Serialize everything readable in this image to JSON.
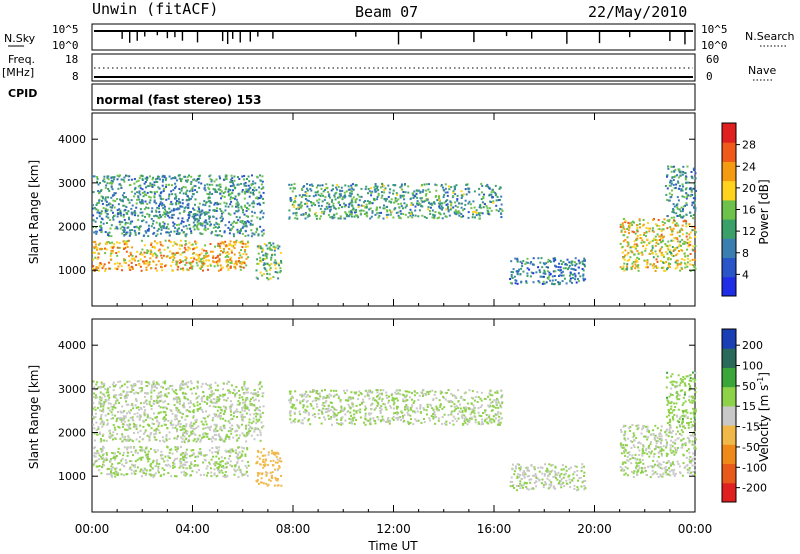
{
  "header": {
    "station": "Unwin (fitACF)",
    "beam": "Beam 07",
    "date": "22/May/2010"
  },
  "strip": {
    "nsky_label": "N.Sky",
    "nsearch_label": "N.Search",
    "nsky_ticks": [
      "10^5",
      "10^0"
    ],
    "nsky_right_ticks": [
      "10^5",
      "10^0"
    ],
    "freq_label": "Freq.",
    "freq_unit": "[MHz]",
    "freq_ticks": [
      "18",
      "8"
    ],
    "nave_label": "Nave",
    "nave_ticks": [
      "60",
      "0"
    ],
    "cpid_label": "CPID",
    "cpid_text": "normal (fast stereo) 153"
  },
  "x_axis": {
    "label": "Time UT",
    "ticks": [
      "00:00",
      "04:00",
      "08:00",
      "12:00",
      "16:00",
      "20:00",
      "00:00"
    ],
    "range_hours": [
      0,
      24
    ]
  },
  "chart_data": [
    {
      "type": "heatmap",
      "quantity": "Power",
      "x": "time_hours",
      "y": "slant_range_km",
      "ylabel": "Slant Range [km]",
      "xlabel": "Time UT",
      "ylim": [
        180,
        4600
      ],
      "yticks": [
        "1000",
        "2000",
        "3000",
        "4000"
      ],
      "colorbar": {
        "label": "Power [dB]",
        "ticks": [
          "4",
          "8",
          "12",
          "16",
          "20",
          "24",
          "28"
        ],
        "range": [
          0,
          32
        ],
        "colors": [
          "#1f2ee6",
          "#2a55c9",
          "#3a7fb0",
          "#3aa06a",
          "#6cc24a",
          "#ffd21e",
          "#f59b12",
          "#ef5a1a",
          "#e02020"
        ]
      },
      "echo_regions": [
        {
          "name": "band-main",
          "t0": 0.0,
          "t1": 6.2,
          "r0": 1000,
          "r1": 1700,
          "level": 22
        },
        {
          "name": "band-upper",
          "t0": 0.0,
          "t1": 6.8,
          "r0": 1800,
          "r1": 3200,
          "level": 10
        },
        {
          "name": "patch-0730",
          "t0": 6.5,
          "t1": 7.5,
          "r0": 800,
          "r1": 1650,
          "level": 14
        },
        {
          "name": "band-mid",
          "t0": 7.8,
          "t1": 16.3,
          "r0": 2200,
          "r1": 3000,
          "level": 12
        },
        {
          "name": "patch-1800",
          "t0": 16.6,
          "t1": 19.6,
          "r0": 700,
          "r1": 1300,
          "level": 8
        },
        {
          "name": "late-band",
          "t0": 21.0,
          "t1": 24.0,
          "r0": 1000,
          "r1": 2200,
          "level": 20
        },
        {
          "name": "late-upper",
          "t0": 22.8,
          "t1": 24.0,
          "r0": 2200,
          "r1": 3400,
          "level": 10
        }
      ]
    },
    {
      "type": "heatmap",
      "quantity": "Velocity",
      "x": "time_hours",
      "y": "slant_range_km",
      "ylabel": "Slant Range [km]",
      "xlabel": "Time UT",
      "ylim": [
        180,
        4600
      ],
      "yticks": [
        "1000",
        "2000",
        "3000",
        "4000"
      ],
      "colorbar": {
        "label": "Velocity [m s",
        "label_sup": "-1",
        "label_end": "]",
        "ticks": [
          "200",
          "100",
          "50",
          "15",
          "-15",
          "-50",
          "-100",
          "-200"
        ],
        "colors": [
          "#1a3fb5",
          "#2a6a5a",
          "#3aa63a",
          "#8ed24a",
          "#c8c8c8",
          "#f0b848",
          "#ef8a1a",
          "#e85a1a",
          "#e02020"
        ]
      },
      "echo_regions": [
        {
          "name": "band-main",
          "t0": 0.0,
          "t1": 6.2,
          "r0": 1000,
          "r1": 1700,
          "velocity": 0
        },
        {
          "name": "band-upper",
          "t0": 0.0,
          "t1": 6.8,
          "r0": 1800,
          "r1": 3200,
          "velocity": 0
        },
        {
          "name": "patch-0730",
          "t0": 6.5,
          "t1": 7.5,
          "r0": 800,
          "r1": 1650,
          "velocity": -50
        },
        {
          "name": "band-mid",
          "t0": 7.8,
          "t1": 16.3,
          "r0": 2200,
          "r1": 3000,
          "velocity": 0
        },
        {
          "name": "patch-1800",
          "t0": 16.6,
          "t1": 19.6,
          "r0": 700,
          "r1": 1300,
          "velocity": 0
        },
        {
          "name": "late-band",
          "t0": 21.0,
          "t1": 24.0,
          "r0": 1000,
          "r1": 2200,
          "velocity": 0
        },
        {
          "name": "late-upper",
          "t0": 22.8,
          "t1": 24.0,
          "r0": 2200,
          "r1": 3400,
          "velocity": 15
        }
      ]
    }
  ]
}
